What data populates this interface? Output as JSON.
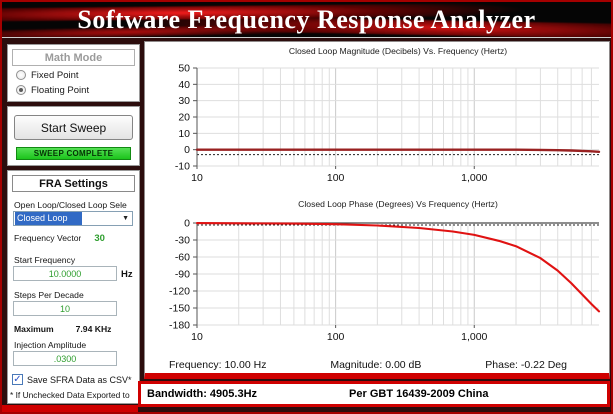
{
  "title": "Software Frequency Response Analyzer",
  "colors": {
    "accent_red": "#cf0000",
    "sweep_green": "#2ed12e",
    "value_green": "#2f9e2f",
    "selection_blue": "#316ac5",
    "magnitude_line": "#992121",
    "phase_line": "#e01212"
  },
  "sidebar": {
    "math_mode": {
      "title": "Math Mode",
      "options": [
        {
          "label": "Fixed Point",
          "selected": false
        },
        {
          "label": "Floating Point",
          "selected": true
        }
      ]
    },
    "sweep": {
      "button": "Start Sweep",
      "status": "SWEEP COMPLETE"
    },
    "fra": {
      "title": "FRA Settings",
      "loop_select_label": "Open Loop/Closed Loop Sele",
      "loop_select_value": "Closed Loop",
      "frequency_vector_label": "Frequency Vector",
      "frequency_vector_value": "30",
      "start_frequency_label": "Start Frequency",
      "start_frequency_value": "10.0000",
      "start_frequency_unit": "Hz",
      "steps_per_decade_label": "Steps Per Decade",
      "steps_per_decade_value": "10",
      "maximum_label": "Maximum",
      "maximum_value": "7.94 KHz",
      "injection_amplitude_label": "Injection Amplitude",
      "injection_amplitude_value": ".0300"
    },
    "csv": {
      "checkbox_label": "Save SFRA Data as CSV*",
      "checked": true,
      "note": "* If Unchecked Data Exported to"
    }
  },
  "chart_data": [
    {
      "type": "line",
      "title": "Closed Loop Magnitude (Decibels) Vs. Frequency (Hertz)",
      "x_scale": "log",
      "x_range": [
        10,
        7940
      ],
      "x_tick_values": [
        10,
        100,
        1000
      ],
      "x_ticks": [
        "10",
        "100",
        "1,000"
      ],
      "ylim": [
        -10,
        50
      ],
      "y_ticks": [
        50,
        40,
        30,
        20,
        10,
        0,
        -10
      ],
      "grid": true,
      "reference_lines": [
        {
          "y": -3,
          "style": "dashed"
        }
      ],
      "series": [
        {
          "name": "closed-loop-magnitude",
          "color": "#992121",
          "width": 2.4,
          "x": [
            10,
            20,
            50,
            100,
            200,
            500,
            1000,
            2000,
            3000,
            4000,
            5000,
            6000,
            7000,
            7940
          ],
          "y": [
            0,
            0,
            0,
            0,
            0,
            0,
            0,
            -0.05,
            -0.15,
            -0.3,
            -0.5,
            -0.75,
            -1.0,
            -1.3
          ]
        }
      ]
    },
    {
      "type": "line",
      "title": "Closed Loop Phase (Degrees) Vs Frequency (Hertz)",
      "x_scale": "log",
      "x_range": [
        10,
        7940
      ],
      "x_tick_values": [
        10,
        100,
        1000
      ],
      "x_ticks": [
        "10",
        "100",
        "1,000"
      ],
      "ylim": [
        -180,
        0
      ],
      "y_ticks": [
        0,
        -30,
        -60,
        -90,
        -120,
        -150,
        -180
      ],
      "grid": true,
      "reference_lines": [
        {
          "y": 0,
          "style": "solid"
        },
        {
          "y": -3.5,
          "style": "dashed"
        }
      ],
      "series": [
        {
          "name": "closed-loop-phase",
          "color": "#e01212",
          "width": 2.1,
          "x": [
            10,
            20,
            50,
            100,
            200,
            400,
            700,
            1000,
            1500,
            2000,
            3000,
            4000,
            5000,
            6000,
            7000,
            7940
          ],
          "y": [
            -0.22,
            -0.45,
            -1.1,
            -2.2,
            -4.4,
            -8.8,
            -15,
            -21,
            -31.5,
            -41,
            -62,
            -84,
            -106,
            -126,
            -143,
            -156
          ]
        }
      ]
    }
  ],
  "stats": {
    "frequency": "Frequency: 10.00 Hz",
    "magnitude": "Magnitude: 0.00 dB",
    "phase": "Phase: -0.22 Deg"
  },
  "footer": {
    "bandwidth": "Bandwidth: 4905.3Hz",
    "standard": "Per GBT 16439-2009 China"
  }
}
